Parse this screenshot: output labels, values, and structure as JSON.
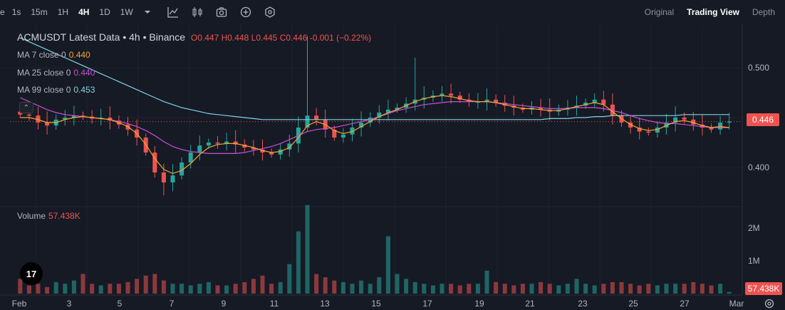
{
  "toolbar": {
    "timeframes": [
      {
        "label": "1s",
        "active": false
      },
      {
        "label": "15m",
        "active": false
      },
      {
        "label": "1H",
        "active": false
      },
      {
        "label": "4H",
        "active": true
      },
      {
        "label": "1D",
        "active": false
      },
      {
        "label": "1W",
        "active": false
      }
    ],
    "first_partial": "e",
    "icons": [
      "chevron-down-icon",
      "indicators-icon",
      "candles-icon",
      "camera-icon",
      "plus-circle-icon",
      "settings-hex-icon"
    ]
  },
  "views": [
    {
      "label": "Original",
      "active": false
    },
    {
      "label": "Trading View",
      "active": true
    },
    {
      "label": "Depth",
      "active": false
    }
  ],
  "legend": {
    "symbol": "ACMUSDT Latest Data • 4h • Binance",
    "o_key": "O",
    "o": "0.447",
    "h_key": "H",
    "h": "0.448",
    "l_key": "L",
    "l": "0.445",
    "c_key": "C",
    "c": "0.446",
    "change": "-0.001 (−0.22%)"
  },
  "ma": [
    {
      "label": "MA 7 close 0",
      "value": "0.440",
      "color": "#f7a531"
    },
    {
      "label": "MA 25 close 0",
      "value": "0.440",
      "color": "#c84fd8"
    },
    {
      "label": "MA 99 close 0",
      "value": "0.453",
      "color": "#7fd4e0"
    }
  ],
  "volume": {
    "label": "Volume",
    "value": "57.438K"
  },
  "price_axis": {
    "ticks": [
      "0.500",
      "0.400"
    ],
    "current": "0.446",
    "current_color": "#ef5350"
  },
  "volume_axis": {
    "ticks": [
      "2M",
      "1M"
    ],
    "current": "57.438K"
  },
  "x_axis": {
    "ticks": [
      "Feb",
      "3",
      "5",
      "7",
      "9",
      "11",
      "13",
      "15",
      "17",
      "19",
      "21",
      "23",
      "25",
      "27",
      "Mar"
    ]
  },
  "logo_text": "17",
  "colors": {
    "up": "#26a69a",
    "down": "#ef5350",
    "ma7": "#f7a531",
    "ma25": "#c84fd8",
    "ma99": "#7fd4e0",
    "bg": "#161a25"
  },
  "chart_data": {
    "type": "candlestick",
    "ylim_price": [
      0.365,
      0.54
    ],
    "x_labels": [
      "Feb",
      "3",
      "5",
      "7",
      "9",
      "11",
      "13",
      "15",
      "17",
      "19",
      "21",
      "23",
      "25",
      "27",
      "Mar"
    ],
    "close_path": [
      0.453,
      0.452,
      0.445,
      0.442,
      0.448,
      0.45,
      0.452,
      0.451,
      0.449,
      0.45,
      0.447,
      0.443,
      0.438,
      0.43,
      0.415,
      0.395,
      0.385,
      0.392,
      0.405,
      0.415,
      0.422,
      0.425,
      0.424,
      0.426,
      0.423,
      0.42,
      0.418,
      0.415,
      0.413,
      0.418,
      0.424,
      0.44,
      0.452,
      0.448,
      0.438,
      0.43,
      0.433,
      0.44,
      0.445,
      0.45,
      0.455,
      0.458,
      0.46,
      0.464,
      0.468,
      0.47,
      0.472,
      0.474,
      0.472,
      0.468,
      0.466,
      0.466,
      0.468,
      0.465,
      0.462,
      0.46,
      0.458,
      0.46,
      0.458,
      0.456,
      0.458,
      0.46,
      0.462,
      0.465,
      0.468,
      0.463,
      0.452,
      0.445,
      0.44,
      0.436,
      0.435,
      0.44,
      0.445,
      0.45,
      0.448,
      0.443,
      0.44,
      0.438,
      0.445,
      0.446
    ],
    "ma7": [
      0.45,
      0.45,
      0.448,
      0.445,
      0.445,
      0.448,
      0.45,
      0.451,
      0.45,
      0.449,
      0.448,
      0.445,
      0.441,
      0.434,
      0.423,
      0.409,
      0.398,
      0.394,
      0.397,
      0.404,
      0.413,
      0.42,
      0.423,
      0.424,
      0.424,
      0.422,
      0.42,
      0.417,
      0.415,
      0.416,
      0.42,
      0.43,
      0.442,
      0.446,
      0.443,
      0.437,
      0.434,
      0.436,
      0.441,
      0.446,
      0.451,
      0.455,
      0.458,
      0.462,
      0.466,
      0.469,
      0.471,
      0.472,
      0.471,
      0.469,
      0.467,
      0.466,
      0.466,
      0.465,
      0.463,
      0.461,
      0.459,
      0.459,
      0.458,
      0.457,
      0.457,
      0.459,
      0.461,
      0.463,
      0.465,
      0.463,
      0.456,
      0.449,
      0.443,
      0.439,
      0.437,
      0.438,
      0.442,
      0.446,
      0.447,
      0.445,
      0.442,
      0.44,
      0.441,
      0.44
    ],
    "ma25": [
      0.47,
      0.466,
      0.462,
      0.458,
      0.455,
      0.453,
      0.452,
      0.451,
      0.45,
      0.449,
      0.448,
      0.446,
      0.444,
      0.441,
      0.437,
      0.432,
      0.426,
      0.421,
      0.418,
      0.416,
      0.415,
      0.414,
      0.414,
      0.414,
      0.414,
      0.415,
      0.417,
      0.419,
      0.421,
      0.424,
      0.428,
      0.432,
      0.436,
      0.438,
      0.439,
      0.44,
      0.442,
      0.444,
      0.446,
      0.448,
      0.451,
      0.454,
      0.457,
      0.459,
      0.461,
      0.463,
      0.464,
      0.465,
      0.466,
      0.466,
      0.466,
      0.466,
      0.466,
      0.465,
      0.464,
      0.463,
      0.462,
      0.461,
      0.46,
      0.459,
      0.459,
      0.459,
      0.46,
      0.46,
      0.46,
      0.459,
      0.457,
      0.455,
      0.452,
      0.449,
      0.447,
      0.445,
      0.444,
      0.444,
      0.443,
      0.442,
      0.441,
      0.44,
      0.44,
      0.44
    ],
    "ma99": [
      0.53,
      0.526,
      0.522,
      0.518,
      0.514,
      0.51,
      0.506,
      0.502,
      0.498,
      0.494,
      0.49,
      0.486,
      0.482,
      0.478,
      0.474,
      0.47,
      0.466,
      0.463,
      0.46,
      0.458,
      0.456,
      0.454,
      0.453,
      0.452,
      0.451,
      0.45,
      0.449,
      0.448,
      0.448,
      0.448,
      0.448,
      0.448,
      0.448,
      0.448,
      0.448,
      0.448,
      0.448,
      0.448,
      0.448,
      0.448,
      0.448,
      0.448,
      0.448,
      0.448,
      0.448,
      0.448,
      0.448,
      0.448,
      0.448,
      0.448,
      0.448,
      0.448,
      0.448,
      0.448,
      0.448,
      0.448,
      0.448,
      0.448,
      0.448,
      0.449,
      0.449,
      0.449,
      0.45,
      0.45,
      0.451,
      0.451,
      0.452,
      0.452,
      0.452,
      0.452,
      0.452,
      0.452,
      0.452,
      0.452,
      0.453,
      0.453,
      0.453,
      0.453,
      0.453,
      0.453
    ],
    "volume_spikes_M": [
      0.45,
      0.25,
      0.3,
      0.2,
      0.35,
      0.3,
      0.4,
      0.6,
      0.3,
      0.25,
      0.3,
      0.3,
      0.35,
      0.45,
      0.55,
      0.6,
      0.4,
      0.3,
      0.3,
      0.25,
      0.3,
      0.35,
      0.25,
      0.25,
      0.3,
      0.35,
      0.45,
      0.55,
      0.3,
      0.35,
      0.9,
      1.9,
      2.7,
      0.6,
      0.5,
      0.4,
      0.35,
      0.3,
      0.4,
      0.3,
      0.5,
      1.75,
      0.6,
      0.45,
      0.35,
      0.3,
      0.25,
      0.3,
      0.3,
      0.25,
      0.3,
      0.3,
      0.7,
      0.35,
      0.3,
      0.25,
      0.3,
      0.3,
      0.35,
      0.3,
      0.25,
      0.3,
      0.45,
      0.3,
      0.25,
      0.3,
      0.35,
      0.35,
      0.3,
      0.25,
      0.3,
      0.25,
      0.3,
      0.3,
      0.3,
      0.35,
      0.3,
      0.25,
      0.3,
      0.05
    ]
  }
}
